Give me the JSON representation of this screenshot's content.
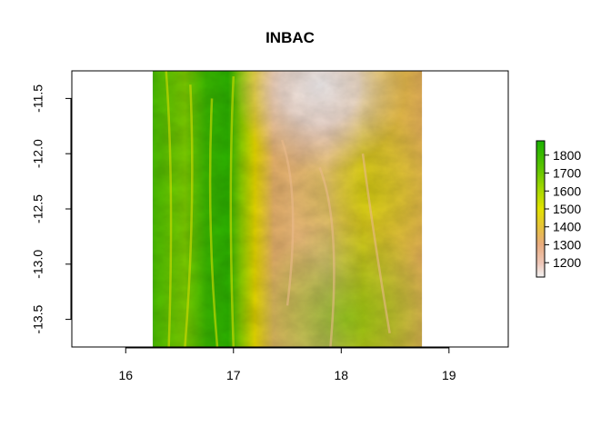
{
  "map": {
    "title": "INBAC",
    "x_ticks": [
      {
        "value": 16,
        "label": "16"
      },
      {
        "value": 17,
        "label": "17"
      },
      {
        "value": 18,
        "label": "18"
      },
      {
        "value": 19,
        "label": "19"
      }
    ],
    "y_ticks": [
      {
        "value": -11.5,
        "label": "-11.5"
      },
      {
        "value": -12.0,
        "label": "-12.0"
      },
      {
        "value": -12.5,
        "label": "-12.5"
      },
      {
        "value": -13.0,
        "label": "-13.0"
      },
      {
        "value": -13.5,
        "label": "-13.5"
      }
    ],
    "xlim": [
      15.5,
      19.55
    ],
    "ylim": [
      -13.75,
      -11.25
    ],
    "raster_extent": {
      "xmin": 16.25,
      "xmax": 18.75,
      "ymin": -13.75,
      "ymax": -11.25
    },
    "legend": {
      "min": 1120,
      "max": 1880,
      "ticks": [
        {
          "value": 1200,
          "label": "1200"
        },
        {
          "value": 1300,
          "label": "1300"
        },
        {
          "value": 1400,
          "label": "1400"
        },
        {
          "value": 1500,
          "label": "1500"
        },
        {
          "value": 1600,
          "label": "1600"
        },
        {
          "value": 1700,
          "label": "1700"
        },
        {
          "value": 1800,
          "label": "1800"
        }
      ],
      "colors": [
        "#f2f2f2",
        "#eec7b8",
        "#e9ab7e",
        "#e6c33a",
        "#e2e200",
        "#a6d800",
        "#5bc400",
        "#1ab000"
      ]
    }
  }
}
